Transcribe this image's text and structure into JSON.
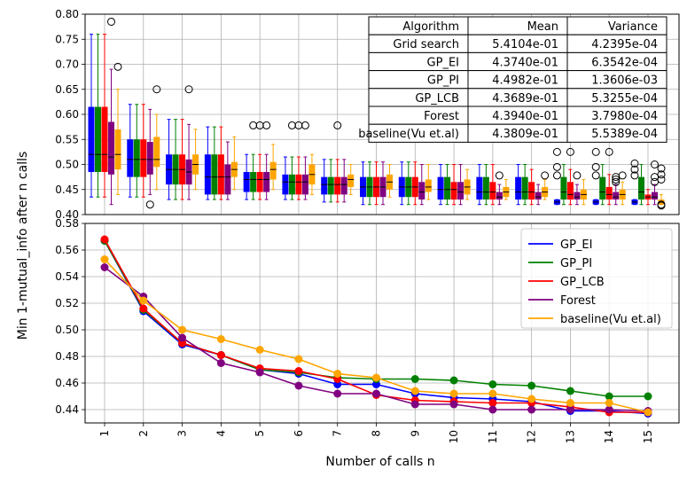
{
  "colors": {
    "GP_EI": "#0000ff",
    "GP_PI": "#008000",
    "GP_LCB": "#ff0000",
    "Forest": "#800080",
    "baseline": "#ffa500",
    "grid": "#b0b0b0"
  },
  "chart_data": [
    {
      "type": "box",
      "xlabel": "",
      "ylabel": "",
      "ylim": [
        0.4,
        0.8
      ],
      "yticks": [
        "0.40",
        "0.45",
        "0.50",
        "0.55",
        "0.60",
        "0.65",
        "0.70",
        "0.75",
        "0.80"
      ],
      "grid": true,
      "series_order": [
        "GP_EI",
        "GP_PI",
        "GP_LCB",
        "Forest",
        "baseline"
      ],
      "boxes": [
        [
          [
            0.435,
            0.485,
            0.52,
            0.615,
            0.76
          ],
          [
            0.435,
            0.485,
            0.52,
            0.615,
            0.76
          ],
          [
            0.435,
            0.485,
            0.52,
            0.615,
            0.76
          ],
          [
            0.42,
            0.48,
            0.515,
            0.585,
            0.69
          ],
          [
            0.44,
            0.49,
            0.52,
            0.57,
            0.65
          ]
        ],
        [
          [
            0.435,
            0.475,
            0.51,
            0.55,
            0.62
          ],
          [
            0.435,
            0.475,
            0.51,
            0.55,
            0.62
          ],
          [
            0.435,
            0.475,
            0.51,
            0.55,
            0.62
          ],
          [
            0.44,
            0.48,
            0.51,
            0.545,
            0.61
          ],
          [
            0.45,
            0.495,
            0.51,
            0.555,
            0.6
          ]
        ],
        [
          [
            0.43,
            0.46,
            0.49,
            0.52,
            0.59
          ],
          [
            0.43,
            0.46,
            0.49,
            0.52,
            0.59
          ],
          [
            0.43,
            0.46,
            0.49,
            0.52,
            0.59
          ],
          [
            0.43,
            0.46,
            0.485,
            0.51,
            0.58
          ],
          [
            0.45,
            0.48,
            0.5,
            0.52,
            0.57
          ]
        ],
        [
          [
            0.43,
            0.44,
            0.475,
            0.52,
            0.575
          ],
          [
            0.43,
            0.44,
            0.475,
            0.52,
            0.575
          ],
          [
            0.43,
            0.44,
            0.475,
            0.52,
            0.575
          ],
          [
            0.43,
            0.44,
            0.475,
            0.5,
            0.545
          ],
          [
            0.45,
            0.475,
            0.49,
            0.505,
            0.555
          ]
        ],
        [
          [
            0.43,
            0.445,
            0.47,
            0.485,
            0.52
          ],
          [
            0.43,
            0.445,
            0.47,
            0.485,
            0.52
          ],
          [
            0.43,
            0.445,
            0.47,
            0.485,
            0.52
          ],
          [
            0.43,
            0.445,
            0.47,
            0.485,
            0.52
          ],
          [
            0.45,
            0.47,
            0.49,
            0.505,
            0.54
          ]
        ],
        [
          [
            0.43,
            0.44,
            0.465,
            0.48,
            0.515
          ],
          [
            0.43,
            0.44,
            0.465,
            0.48,
            0.515
          ],
          [
            0.43,
            0.44,
            0.465,
            0.48,
            0.515
          ],
          [
            0.43,
            0.44,
            0.465,
            0.48,
            0.515
          ],
          [
            0.44,
            0.46,
            0.48,
            0.5,
            0.52
          ]
        ],
        [
          [
            0.425,
            0.44,
            0.46,
            0.475,
            0.51
          ],
          [
            0.425,
            0.44,
            0.46,
            0.475,
            0.51
          ],
          [
            0.425,
            0.44,
            0.46,
            0.475,
            0.51
          ],
          [
            0.425,
            0.44,
            0.46,
            0.475,
            0.51
          ],
          [
            0.44,
            0.455,
            0.47,
            0.48,
            0.5
          ]
        ],
        [
          [
            0.42,
            0.435,
            0.455,
            0.475,
            0.505
          ],
          [
            0.42,
            0.435,
            0.455,
            0.475,
            0.505
          ],
          [
            0.42,
            0.435,
            0.455,
            0.475,
            0.505
          ],
          [
            0.42,
            0.435,
            0.455,
            0.475,
            0.505
          ],
          [
            0.435,
            0.45,
            0.465,
            0.48,
            0.5
          ]
        ],
        [
          [
            0.42,
            0.435,
            0.455,
            0.475,
            0.505
          ],
          [
            0.42,
            0.435,
            0.455,
            0.475,
            0.505
          ],
          [
            0.42,
            0.435,
            0.455,
            0.475,
            0.505
          ],
          [
            0.42,
            0.43,
            0.445,
            0.465,
            0.5
          ],
          [
            0.43,
            0.445,
            0.455,
            0.47,
            0.5
          ]
        ],
        [
          [
            0.42,
            0.43,
            0.45,
            0.475,
            0.5
          ],
          [
            0.42,
            0.43,
            0.45,
            0.475,
            0.5
          ],
          [
            0.42,
            0.43,
            0.45,
            0.465,
            0.5
          ],
          [
            0.42,
            0.43,
            0.445,
            0.465,
            0.5
          ],
          [
            0.43,
            0.44,
            0.455,
            0.47,
            0.49
          ]
        ],
        [
          [
            0.42,
            0.43,
            0.445,
            0.475,
            0.5
          ],
          [
            0.42,
            0.43,
            0.445,
            0.475,
            0.5
          ],
          [
            0.42,
            0.43,
            0.445,
            0.465,
            0.5
          ],
          [
            0.42,
            0.43,
            0.435,
            0.445,
            0.46
          ],
          [
            0.43,
            0.435,
            0.445,
            0.455,
            0.47
          ]
        ],
        [
          [
            0.42,
            0.43,
            0.445,
            0.475,
            0.5
          ],
          [
            0.42,
            0.43,
            0.445,
            0.475,
            0.5
          ],
          [
            0.42,
            0.43,
            0.445,
            0.465,
            0.49
          ],
          [
            0.42,
            0.43,
            0.435,
            0.445,
            0.46
          ],
          [
            0.43,
            0.435,
            0.445,
            0.455,
            0.47
          ]
        ],
        [
          [
            0.42,
            0.42,
            0.425,
            0.43,
            0.43
          ],
          [
            0.42,
            0.43,
            0.445,
            0.475,
            0.5
          ],
          [
            0.42,
            0.43,
            0.44,
            0.465,
            0.49
          ],
          [
            0.42,
            0.43,
            0.435,
            0.445,
            0.46
          ],
          [
            0.42,
            0.43,
            0.44,
            0.45,
            0.47
          ]
        ],
        [
          [
            0.42,
            0.42,
            0.425,
            0.43,
            0.43
          ],
          [
            0.42,
            0.43,
            0.445,
            0.475,
            0.5
          ],
          [
            0.42,
            0.43,
            0.44,
            0.455,
            0.48
          ],
          [
            0.42,
            0.43,
            0.435,
            0.445,
            0.46
          ],
          [
            0.42,
            0.43,
            0.44,
            0.45,
            0.465
          ]
        ],
        [
          [
            0.42,
            0.42,
            0.425,
            0.43,
            0.43
          ],
          [
            0.42,
            0.43,
            0.445,
            0.475,
            0.5
          ],
          [
            0.42,
            0.43,
            0.435,
            0.44,
            0.45
          ],
          [
            0.42,
            0.43,
            0.435,
            0.445,
            0.46
          ],
          [
            0.42,
            0.42,
            0.425,
            0.43,
            0.44
          ]
        ]
      ],
      "outliers": [
        {
          "n": 1,
          "series": "Forest",
          "values": [
            0.785
          ]
        },
        {
          "n": 1,
          "series": "baseline",
          "values": [
            0.695
          ]
        },
        {
          "n": 2,
          "series": "Forest",
          "values": [
            0.42
          ]
        },
        {
          "n": 2,
          "series": "baseline",
          "values": [
            0.65
          ]
        },
        {
          "n": 3,
          "series": "Forest",
          "values": [
            0.65
          ]
        },
        {
          "n": 5,
          "series": "GP_PI",
          "values": [
            0.578
          ]
        },
        {
          "n": 5,
          "series": "GP_LCB",
          "values": [
            0.578
          ]
        },
        {
          "n": 5,
          "series": "Forest",
          "values": [
            0.578
          ]
        },
        {
          "n": 6,
          "series": "GP_PI",
          "values": [
            0.578
          ]
        },
        {
          "n": 6,
          "series": "GP_LCB",
          "values": [
            0.578
          ]
        },
        {
          "n": 6,
          "series": "Forest",
          "values": [
            0.578
          ]
        },
        {
          "n": 7,
          "series": "GP_LCB",
          "values": [
            0.578
          ]
        },
        {
          "n": 11,
          "series": "Forest",
          "values": [
            0.478
          ]
        },
        {
          "n": 12,
          "series": "baseline",
          "values": [
            0.478
          ]
        },
        {
          "n": 13,
          "series": "GP_EI",
          "values": [
            0.478,
            0.495,
            0.525
          ]
        },
        {
          "n": 13,
          "series": "GP_LCB",
          "values": [
            0.525
          ]
        },
        {
          "n": 13,
          "series": "Forest",
          "values": [
            0.478
          ]
        },
        {
          "n": 14,
          "series": "GP_EI",
          "values": [
            0.478,
            0.495,
            0.525
          ]
        },
        {
          "n": 14,
          "series": "GP_LCB",
          "values": [
            0.525
          ]
        },
        {
          "n": 14,
          "series": "Forest",
          "values": [
            0.465,
            0.47,
            0.475
          ]
        },
        {
          "n": 14,
          "series": "baseline",
          "values": [
            0.478
          ]
        },
        {
          "n": 15,
          "series": "GP_EI",
          "values": [
            0.478,
            0.49,
            0.502
          ]
        },
        {
          "n": 15,
          "series": "Forest",
          "values": [
            0.465,
            0.475,
            0.5
          ]
        },
        {
          "n": 15,
          "series": "baseline",
          "values": [
            0.418,
            0.42,
            0.47,
            0.48,
            0.492
          ]
        }
      ]
    },
    {
      "type": "line",
      "xlabel": "Number of calls n",
      "ylabel": "Min 1-mutual_info after n calls",
      "x": [
        1,
        2,
        3,
        4,
        5,
        6,
        7,
        8,
        9,
        10,
        11,
        12,
        13,
        14,
        15
      ],
      "ylim": [
        0.43,
        0.58
      ],
      "yticks": [
        "0.44",
        "0.46",
        "0.48",
        "0.50",
        "0.52",
        "0.54",
        "0.56",
        "0.58"
      ],
      "xticks": [
        "1",
        "2",
        "3",
        "4",
        "5",
        "6",
        "7",
        "8",
        "9",
        "10",
        "11",
        "12",
        "13",
        "14",
        "15"
      ],
      "grid": true,
      "legend_position": "upper-right",
      "series": [
        {
          "name": "GP_EI",
          "values": [
            0.567,
            0.514,
            0.489,
            0.481,
            0.47,
            0.467,
            0.459,
            0.459,
            0.452,
            0.449,
            0.448,
            0.446,
            0.439,
            0.439,
            0.437
          ]
        },
        {
          "name": "GP_PI",
          "values": [
            0.567,
            0.515,
            0.49,
            0.481,
            0.47,
            0.468,
            0.464,
            0.463,
            0.463,
            0.462,
            0.459,
            0.458,
            0.454,
            0.45,
            0.45
          ]
        },
        {
          "name": "GP_LCB",
          "values": [
            0.568,
            0.516,
            0.49,
            0.481,
            0.471,
            0.469,
            0.463,
            0.451,
            0.447,
            0.446,
            0.445,
            0.445,
            0.442,
            0.438,
            0.438
          ]
        },
        {
          "name": "Forest",
          "values": [
            0.547,
            0.525,
            0.494,
            0.475,
            0.468,
            0.458,
            0.452,
            0.452,
            0.444,
            0.444,
            0.44,
            0.44,
            0.44,
            0.44,
            0.439
          ]
        },
        {
          "name": "baseline(Vu et.al)",
          "values": [
            0.553,
            0.522,
            0.5,
            0.493,
            0.485,
            0.478,
            0.467,
            0.464,
            0.454,
            0.452,
            0.452,
            0.448,
            0.445,
            0.445,
            0.438
          ]
        }
      ]
    }
  ],
  "table": {
    "headers": [
      "Algorithm",
      "Mean",
      "Variance"
    ],
    "rows": [
      [
        "Grid search",
        "5.4104e-01",
        "4.2395e-04"
      ],
      [
        "GP_EI",
        "4.3740e-01",
        "6.3542e-04"
      ],
      [
        "GP_PI",
        "4.4982e-01",
        "1.3606e-03"
      ],
      [
        "GP_LCB",
        "4.3689e-01",
        "5.3255e-04"
      ],
      [
        "Forest",
        "4.3940e-01",
        "3.7980e-04"
      ],
      [
        "baseline(Vu et.al)",
        "4.3809e-01",
        "5.5389e-04"
      ]
    ]
  }
}
